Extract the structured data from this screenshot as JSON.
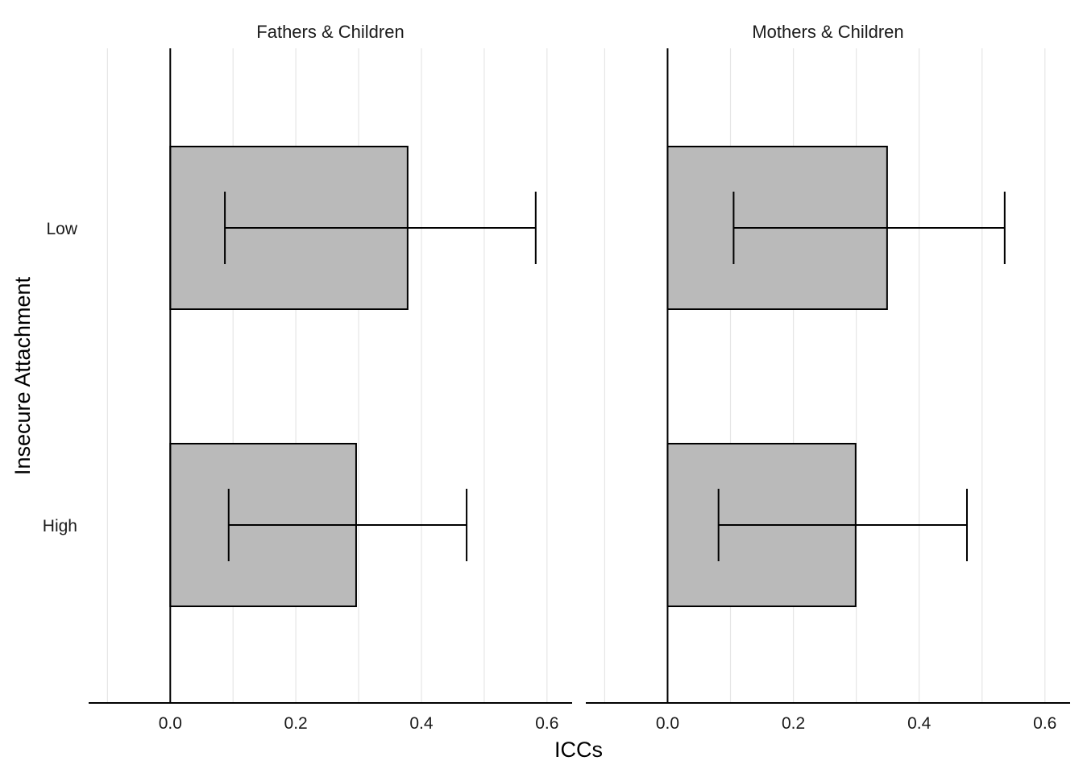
{
  "chart_data": {
    "type": "bar",
    "orientation": "horizontal",
    "xlabel": "ICCs",
    "ylabel": "Insecure Attachment",
    "categories": [
      "Low",
      "High"
    ],
    "xlim": [
      -0.13,
      0.64
    ],
    "xticks": [
      0.0,
      0.2,
      0.4,
      0.6
    ],
    "xtick_labels": [
      "0.0",
      "0.2",
      "0.4",
      "0.6"
    ],
    "grid": true,
    "colors": {
      "bar_fill": "#bababa",
      "bar_stroke": "#000000",
      "grid": "#e5e5e5"
    },
    "panels": [
      {
        "title": "Fathers & Children",
        "values": [
          0.378,
          0.296
        ],
        "ci_low": [
          0.087,
          0.093
        ],
        "ci_high": [
          0.582,
          0.472
        ]
      },
      {
        "title": "Mothers & Children",
        "values": [
          0.349,
          0.299
        ],
        "ci_low": [
          0.105,
          0.081
        ],
        "ci_high": [
          0.536,
          0.476
        ]
      }
    ]
  }
}
